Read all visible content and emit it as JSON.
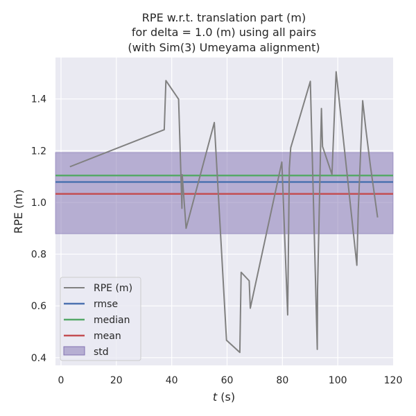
{
  "chart_data": {
    "type": "line",
    "title_lines": [
      "RPE w.r.t. translation part (m)",
      "for delta = 1.0 (m) using all pairs",
      "(with Sim(3) Umeyama alignment)"
    ],
    "xlabel_italic": "t",
    "xlabel_rest": " (s)",
    "ylabel": "RPE (m)",
    "xlim": [
      -2,
      120
    ],
    "ylim": [
      0.37,
      1.56
    ],
    "xticks": [
      0,
      20,
      40,
      60,
      80,
      100,
      120
    ],
    "yticks": [
      0.4,
      0.6,
      0.8,
      1.0,
      1.2,
      1.4
    ],
    "ytick_labels": [
      "0.4",
      "0.6",
      "0.8",
      "1.0",
      "1.2",
      "1.4"
    ],
    "grid": true,
    "legend_position": "lower-left",
    "colors": {
      "background": "#eaeaf2",
      "grid": "#ffffff",
      "rpe": "#808080",
      "rmse": "#4c72b0",
      "median": "#55a868",
      "mean": "#c44e52",
      "std_fill": "#8172b2"
    },
    "series": [
      {
        "name": "RPE (m)",
        "x": [
          3.2,
          37.3,
          37.9,
          42.5,
          43.7,
          43.8,
          45.2,
          55.4,
          59.8,
          64.6,
          65.1,
          68.0,
          68.4,
          79.8,
          81.9,
          82.5,
          83.0,
          90.1,
          92.6,
          92.7,
          94.1,
          94.5,
          97.9,
          99.4,
          106.9,
          107.4,
          109.0,
          110.1,
          111.8,
          114.4
        ],
        "y": [
          1.138,
          1.281,
          1.471,
          1.399,
          0.977,
          1.107,
          0.9,
          1.309,
          0.467,
          0.42,
          0.73,
          0.697,
          0.591,
          1.156,
          0.565,
          1.132,
          1.211,
          1.468,
          0.432,
          0.663,
          1.363,
          1.216,
          1.108,
          1.505,
          0.757,
          0.968,
          1.393,
          1.287,
          1.14,
          0.942
        ]
      }
    ],
    "stats": {
      "rmse": 1.079,
      "median": 1.104,
      "mean": 1.033,
      "std_low": 0.879,
      "std_high": 1.193
    },
    "legend": [
      "RPE (m)",
      "rmse",
      "median",
      "mean",
      "std"
    ]
  }
}
